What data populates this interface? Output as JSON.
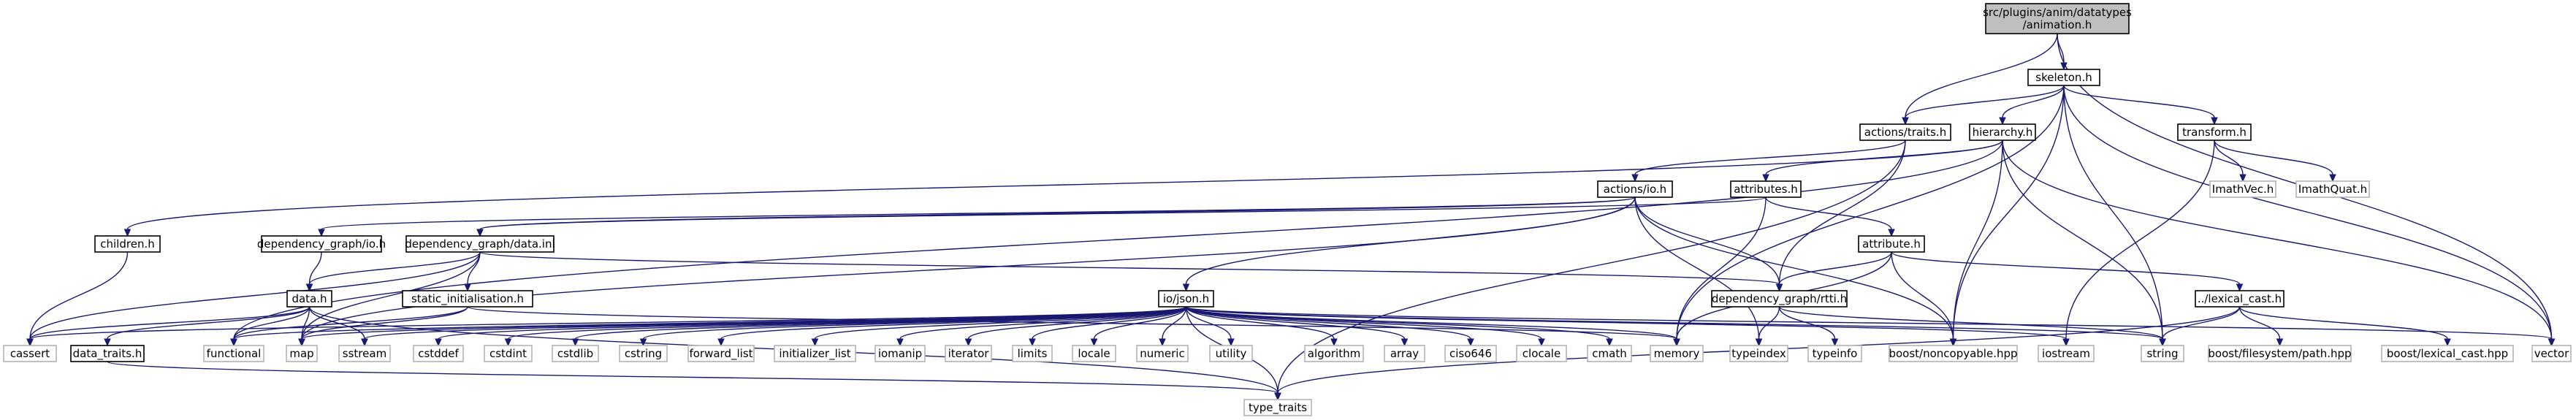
{
  "diagram": {
    "nodes": [
      {
        "id": "animation",
        "label": [
          "src/plugins/anim/datatypes",
          "/animation.h"
        ],
        "kind": "root"
      },
      {
        "id": "skeleton",
        "label": [
          "skeleton.h"
        ],
        "kind": "primary"
      },
      {
        "id": "actions_traits",
        "label": [
          "actions/traits.h"
        ],
        "kind": "primary"
      },
      {
        "id": "hierarchy",
        "label": [
          "hierarchy.h"
        ],
        "kind": "primary"
      },
      {
        "id": "transform",
        "label": [
          "transform.h"
        ],
        "kind": "primary"
      },
      {
        "id": "actions_io",
        "label": [
          "actions/io.h"
        ],
        "kind": "primary"
      },
      {
        "id": "attributes",
        "label": [
          "attributes.h"
        ],
        "kind": "primary"
      },
      {
        "id": "attribute",
        "label": [
          "attribute.h"
        ],
        "kind": "primary"
      },
      {
        "id": "children",
        "label": [
          "children.h"
        ],
        "kind": "primary"
      },
      {
        "id": "dg_io",
        "label": [
          "dependency_graph/io.h"
        ],
        "kind": "primary"
      },
      {
        "id": "dg_data_inl",
        "label": [
          "dependency_graph/data.inl"
        ],
        "kind": "primary"
      },
      {
        "id": "data_h",
        "label": [
          "data.h"
        ],
        "kind": "primary"
      },
      {
        "id": "static_init",
        "label": [
          "static_initialisation.h"
        ],
        "kind": "primary"
      },
      {
        "id": "io_json",
        "label": [
          "io/json.h"
        ],
        "kind": "primary"
      },
      {
        "id": "dg_rtti",
        "label": [
          "dependency_graph/rtti.h"
        ],
        "kind": "primary"
      },
      {
        "id": "lexical_cast",
        "label": [
          "../lexical_cast.h"
        ],
        "kind": "primary"
      },
      {
        "id": "data_traits",
        "label": [
          "data_traits.h"
        ],
        "kind": "primary"
      },
      {
        "id": "cassert",
        "label": [
          "cassert"
        ],
        "kind": "external"
      },
      {
        "id": "functional",
        "label": [
          "functional"
        ],
        "kind": "external"
      },
      {
        "id": "map",
        "label": [
          "map"
        ],
        "kind": "external"
      },
      {
        "id": "sstream",
        "label": [
          "sstream"
        ],
        "kind": "external"
      },
      {
        "id": "cstddef",
        "label": [
          "cstddef"
        ],
        "kind": "external"
      },
      {
        "id": "cstdint",
        "label": [
          "cstdint"
        ],
        "kind": "external"
      },
      {
        "id": "cstdlib",
        "label": [
          "cstdlib"
        ],
        "kind": "external"
      },
      {
        "id": "cstring",
        "label": [
          "cstring"
        ],
        "kind": "external"
      },
      {
        "id": "forward_list",
        "label": [
          "forward_list"
        ],
        "kind": "external"
      },
      {
        "id": "initializer_list",
        "label": [
          "initializer_list"
        ],
        "kind": "external"
      },
      {
        "id": "iomanip",
        "label": [
          "iomanip"
        ],
        "kind": "external"
      },
      {
        "id": "iterator",
        "label": [
          "iterator"
        ],
        "kind": "external"
      },
      {
        "id": "limits",
        "label": [
          "limits"
        ],
        "kind": "external"
      },
      {
        "id": "locale",
        "label": [
          "locale"
        ],
        "kind": "external"
      },
      {
        "id": "numeric",
        "label": [
          "numeric"
        ],
        "kind": "external"
      },
      {
        "id": "utility",
        "label": [
          "utility"
        ],
        "kind": "external"
      },
      {
        "id": "algorithm",
        "label": [
          "algorithm"
        ],
        "kind": "external"
      },
      {
        "id": "array",
        "label": [
          "array"
        ],
        "kind": "external"
      },
      {
        "id": "ciso646",
        "label": [
          "ciso646"
        ],
        "kind": "external"
      },
      {
        "id": "clocale",
        "label": [
          "clocale"
        ],
        "kind": "external"
      },
      {
        "id": "cmath",
        "label": [
          "cmath"
        ],
        "kind": "external"
      },
      {
        "id": "memory",
        "label": [
          "memory"
        ],
        "kind": "external"
      },
      {
        "id": "typeindex",
        "label": [
          "typeindex"
        ],
        "kind": "external"
      },
      {
        "id": "typeinfo",
        "label": [
          "typeinfo"
        ],
        "kind": "external"
      },
      {
        "id": "boost_noncopyable",
        "label": [
          "boost/noncopyable.hpp"
        ],
        "kind": "external"
      },
      {
        "id": "iostream",
        "label": [
          "iostream"
        ],
        "kind": "external"
      },
      {
        "id": "string",
        "label": [
          "string"
        ],
        "kind": "external"
      },
      {
        "id": "boost_fs_path",
        "label": [
          "boost/filesystem/path.hpp"
        ],
        "kind": "external"
      },
      {
        "id": "boost_lexical_cast",
        "label": [
          "boost/lexical_cast.hpp"
        ],
        "kind": "external"
      },
      {
        "id": "vector",
        "label": [
          "vector"
        ],
        "kind": "external"
      },
      {
        "id": "imathvec",
        "label": [
          "ImathVec.h"
        ],
        "kind": "external"
      },
      {
        "id": "imathquat",
        "label": [
          "ImathQuat.h"
        ],
        "kind": "external"
      },
      {
        "id": "type_traits",
        "label": [
          "type_traits"
        ],
        "kind": "external"
      }
    ],
    "edges": [
      [
        "animation",
        "skeleton"
      ],
      [
        "animation",
        "actions_traits"
      ],
      [
        "animation",
        "vector"
      ],
      [
        "skeleton",
        "actions_traits"
      ],
      [
        "skeleton",
        "hierarchy"
      ],
      [
        "skeleton",
        "transform"
      ],
      [
        "skeleton",
        "memory"
      ],
      [
        "skeleton",
        "string"
      ],
      [
        "skeleton",
        "boost_noncopyable"
      ],
      [
        "skeleton",
        "vector"
      ],
      [
        "actions_traits",
        "actions_io"
      ],
      [
        "actions_traits",
        "dg_rtti"
      ],
      [
        "actions_traits",
        "type_traits"
      ],
      [
        "hierarchy",
        "children"
      ],
      [
        "hierarchy",
        "attributes"
      ],
      [
        "hierarchy",
        "functional"
      ],
      [
        "hierarchy",
        "boost_noncopyable"
      ],
      [
        "hierarchy",
        "string"
      ],
      [
        "hierarchy",
        "vector"
      ],
      [
        "transform",
        "imathvec"
      ],
      [
        "transform",
        "imathquat"
      ],
      [
        "transform",
        "iostream"
      ],
      [
        "actions_io",
        "dg_io"
      ],
      [
        "actions_io",
        "dg_data_inl"
      ],
      [
        "actions_io",
        "io_json"
      ],
      [
        "actions_io",
        "dg_rtti"
      ],
      [
        "actions_io",
        "boost_noncopyable"
      ],
      [
        "actions_io",
        "typeindex"
      ],
      [
        "actions_io",
        "map"
      ],
      [
        "attributes",
        "attribute"
      ],
      [
        "attributes",
        "memory"
      ],
      [
        "attributes",
        "dg_data_inl"
      ],
      [
        "attribute",
        "dg_rtti"
      ],
      [
        "attribute",
        "lexical_cast"
      ],
      [
        "attribute",
        "boost_noncopyable"
      ],
      [
        "attribute",
        "memory"
      ],
      [
        "children",
        "cassert"
      ],
      [
        "dg_io",
        "data_h"
      ],
      [
        "dg_data_inl",
        "data_h"
      ],
      [
        "dg_data_inl",
        "static_init"
      ],
      [
        "dg_data_inl",
        "dg_rtti"
      ],
      [
        "dg_data_inl",
        "cassert"
      ],
      [
        "dg_data_inl",
        "map"
      ],
      [
        "data_h",
        "data_traits"
      ],
      [
        "data_h",
        "cassert"
      ],
      [
        "data_h",
        "functional"
      ],
      [
        "data_h",
        "map"
      ],
      [
        "data_h",
        "sstream"
      ],
      [
        "data_h",
        "type_traits"
      ],
      [
        "static_init",
        "functional"
      ],
      [
        "static_init",
        "map"
      ],
      [
        "static_init",
        "memory"
      ],
      [
        "io_json",
        "cassert"
      ],
      [
        "io_json",
        "functional"
      ],
      [
        "io_json",
        "map"
      ],
      [
        "io_json",
        "sstream"
      ],
      [
        "io_json",
        "cstddef"
      ],
      [
        "io_json",
        "cstdint"
      ],
      [
        "io_json",
        "cstdlib"
      ],
      [
        "io_json",
        "cstring"
      ],
      [
        "io_json",
        "forward_list"
      ],
      [
        "io_json",
        "initializer_list"
      ],
      [
        "io_json",
        "iomanip"
      ],
      [
        "io_json",
        "iterator"
      ],
      [
        "io_json",
        "limits"
      ],
      [
        "io_json",
        "locale"
      ],
      [
        "io_json",
        "numeric"
      ],
      [
        "io_json",
        "utility"
      ],
      [
        "io_json",
        "algorithm"
      ],
      [
        "io_json",
        "array"
      ],
      [
        "io_json",
        "ciso646"
      ],
      [
        "io_json",
        "clocale"
      ],
      [
        "io_json",
        "cmath"
      ],
      [
        "io_json",
        "memory"
      ],
      [
        "io_json",
        "iostream"
      ],
      [
        "io_json",
        "string"
      ],
      [
        "io_json",
        "vector"
      ],
      [
        "io_json",
        "type_traits"
      ],
      [
        "dg_rtti",
        "typeindex"
      ],
      [
        "dg_rtti",
        "typeinfo"
      ],
      [
        "dg_rtti",
        "string"
      ],
      [
        "lexical_cast",
        "string"
      ],
      [
        "lexical_cast",
        "boost_fs_path"
      ],
      [
        "lexical_cast",
        "boost_lexical_cast"
      ],
      [
        "lexical_cast",
        "type_traits"
      ],
      [
        "data_traits",
        "type_traits"
      ]
    ]
  }
}
